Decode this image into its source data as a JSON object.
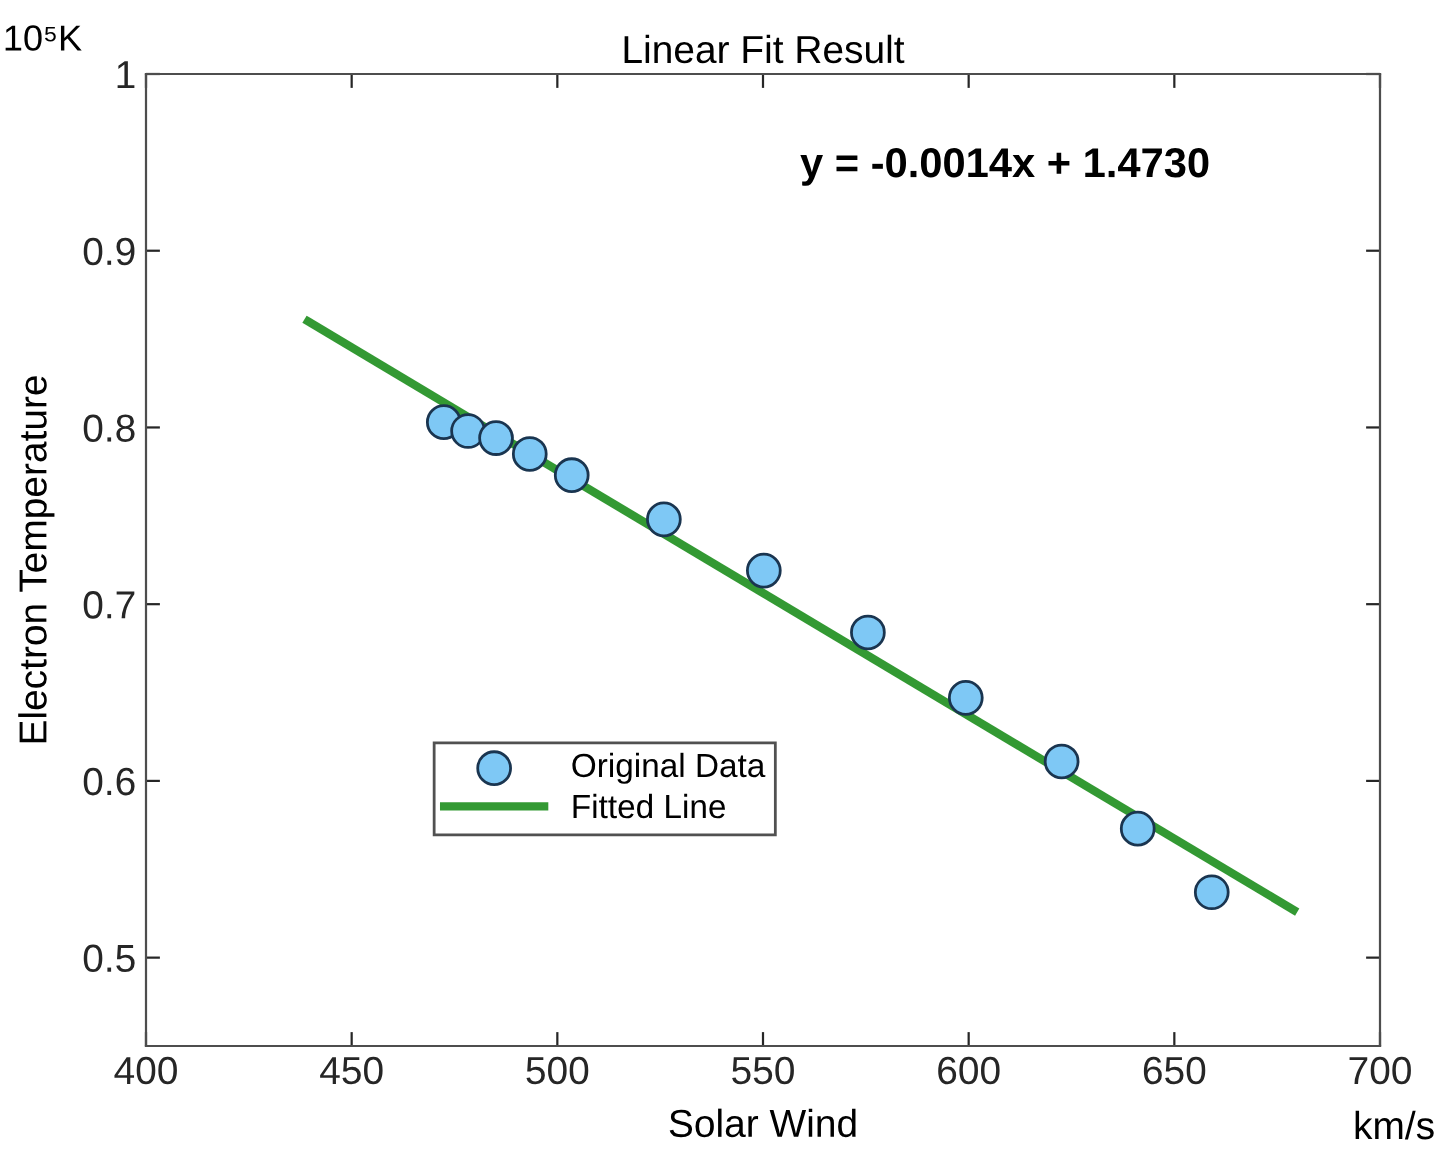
{
  "chart_data": {
    "type": "scatter",
    "title": "Linear Fit Result",
    "xlabel": "Solar Wind",
    "ylabel": "Electron Temperature",
    "annotations": [
      "y = -0.0014x + 1.4730",
      "10⁵K",
      "km/s"
    ],
    "series": [
      {
        "name": "Original Data",
        "color": "#7ec8f5",
        "marker": "circle",
        "x": [
          472.4,
          478.3,
          485.1,
          493.3,
          503.5,
          525.9,
          550.2,
          575.5,
          599.3,
          622.6,
          641.1,
          659.1
        ],
        "values": [
          0.803,
          0.798,
          0.794,
          0.785,
          0.773,
          0.748,
          0.719,
          0.684,
          0.647,
          0.611,
          0.573,
          0.537
        ]
      },
      {
        "name": "Fitted Line",
        "type": "line",
        "color": "#339933",
        "x": [
          439.4,
          679
        ],
        "values": [
          0.86,
          0.527
        ]
      }
    ],
    "xlim": [
      400,
      700
    ],
    "xticks": [
      400,
      450,
      500,
      550,
      600,
      650,
      700
    ],
    "ylim": [
      0.45,
      1
    ],
    "yticks": [
      0.5,
      0.6,
      0.7,
      0.8,
      0.9,
      1
    ],
    "grid": false,
    "legend": "bottom left"
  }
}
